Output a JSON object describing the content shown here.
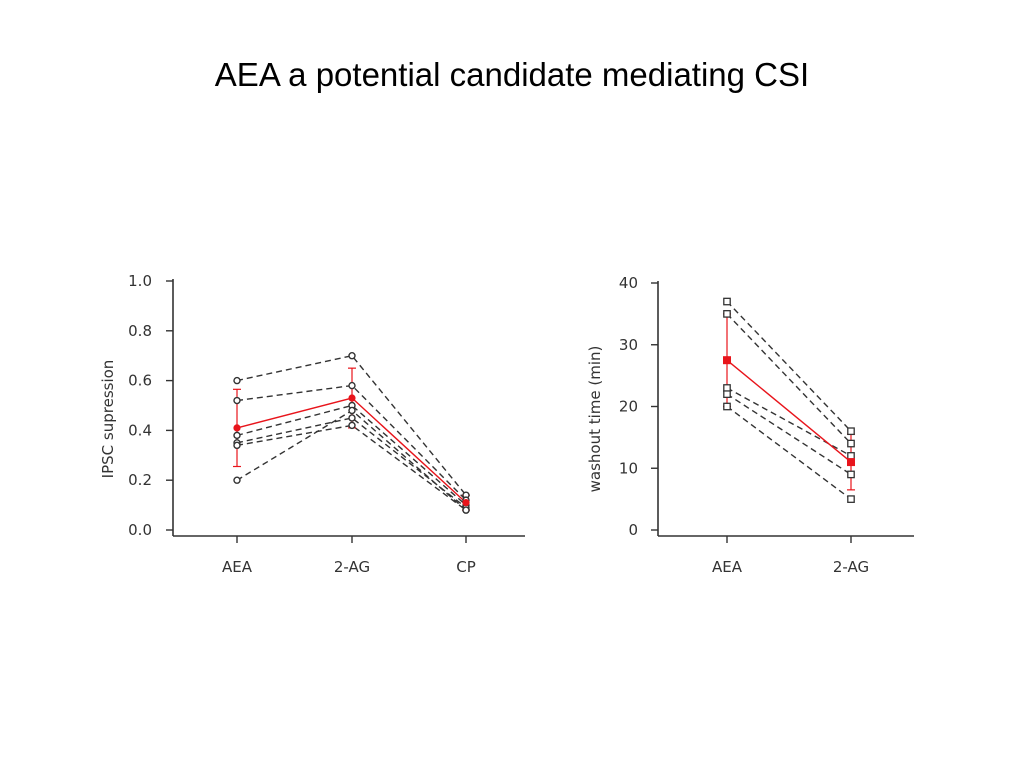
{
  "slide": {
    "title": "AEA  a potential candidate mediating CSI"
  },
  "colors": {
    "mean": "#e8141b",
    "individual": "#333333",
    "axis": "#333333"
  },
  "chart_data": [
    {
      "type": "line",
      "title": "",
      "xlabel": "",
      "ylabel": "IPSC supression",
      "categories": [
        "AEA",
        "2-AG",
        "CP"
      ],
      "y_ticks": [
        "0.0",
        "0.2",
        "0.4",
        "0.6",
        "0.8",
        "1.0"
      ],
      "ylim": [
        0,
        1.0
      ],
      "marker": "circle",
      "individual_series": [
        [
          0.6,
          0.7,
          0.14
        ],
        [
          0.52,
          0.58,
          0.12
        ],
        [
          0.38,
          0.5,
          0.1
        ],
        [
          0.35,
          0.45,
          0.09
        ],
        [
          0.34,
          0.42,
          0.08
        ],
        [
          0.2,
          0.48,
          0.08
        ]
      ],
      "mean_series": {
        "values": [
          0.41,
          0.53,
          0.11
        ],
        "error": [
          0.155,
          0.12,
          0.03
        ]
      }
    },
    {
      "type": "line",
      "title": "",
      "xlabel": "",
      "ylabel": "washout time (min)",
      "categories": [
        "AEA",
        "2-AG"
      ],
      "y_ticks": [
        "0",
        "10",
        "20",
        "30",
        "40"
      ],
      "ylim": [
        0,
        40
      ],
      "marker": "square",
      "individual_series": [
        [
          37,
          16
        ],
        [
          35,
          14
        ],
        [
          23,
          12
        ],
        [
          22,
          9
        ],
        [
          20,
          5
        ]
      ],
      "mean_series": {
        "values": [
          27.5,
          11
        ],
        "error": [
          7.5,
          4.5
        ]
      }
    }
  ]
}
